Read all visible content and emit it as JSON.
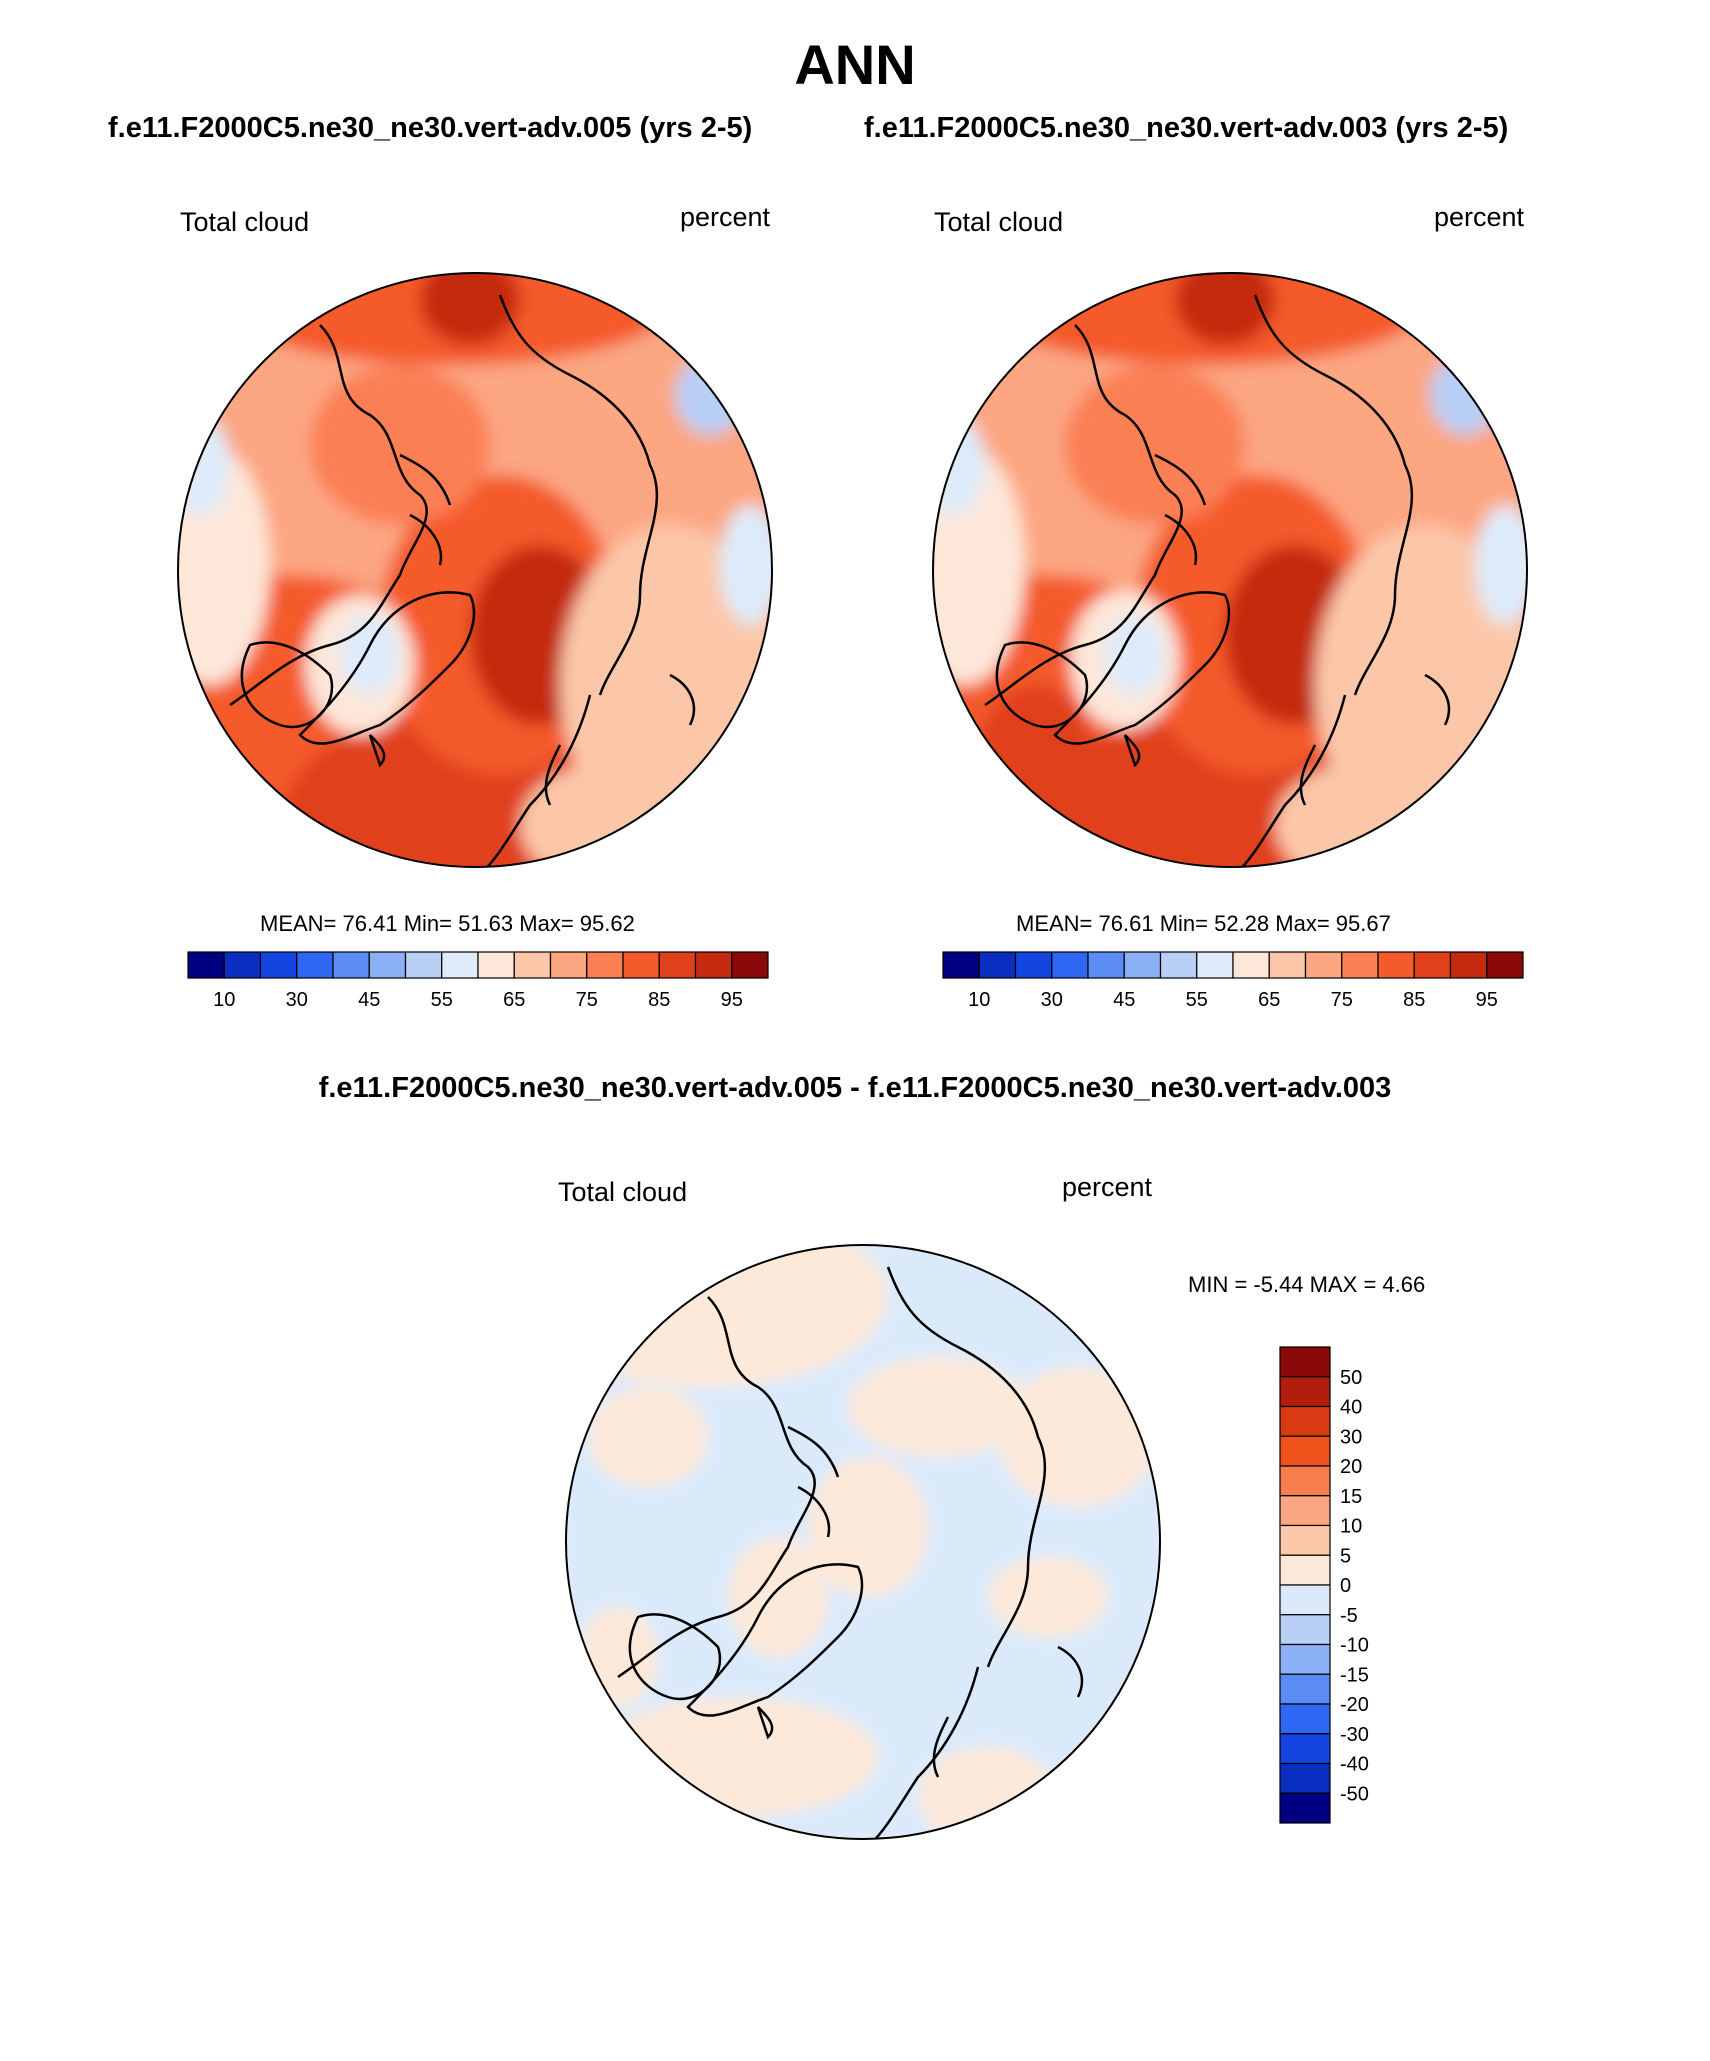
{
  "title": "ANN",
  "panels": [
    {
      "case_title": "f.e11.F2000C5.ne30_ne30.vert-adv.005 (yrs 2-5)",
      "variable": "Total cloud",
      "units": "percent",
      "stats": "MEAN=  76.41  Min=  51.63  Max=  95.62",
      "colorbar_labels": [
        "10",
        "30",
        "45",
        "55",
        "65",
        "75",
        "85",
        "95"
      ]
    },
    {
      "case_title": "f.e11.F2000C5.ne30_ne30.vert-adv.003 (yrs 2-5)",
      "variable": "Total cloud",
      "units": "percent",
      "stats": "MEAN=  76.61  Min=  52.28  Max=  95.67",
      "colorbar_labels": [
        "10",
        "30",
        "45",
        "55",
        "65",
        "75",
        "85",
        "95"
      ]
    }
  ],
  "difference": {
    "title": "f.e11.F2000C5.ne30_ne30.vert-adv.005 - f.e11.F2000C5.ne30_ne30.vert-adv.003",
    "variable": "Total cloud",
    "units": "percent",
    "stats": "MIN =  -5.44 MAX =   4.66",
    "colorbar_labels": [
      "50",
      "40",
      "30",
      "20",
      "15",
      "10",
      "5",
      "0",
      "-5",
      "-10",
      "-15",
      "-20",
      "-30",
      "-40",
      "-50"
    ]
  },
  "colors": {
    "field_scale": [
      "#000080",
      "#0a2ebf",
      "#1445e0",
      "#2f66f2",
      "#5b8cf5",
      "#8cb0f5",
      "#b9cff6",
      "#ddebfa",
      "#fde7d9",
      "#fcc7a9",
      "#fca682",
      "#fb7f55",
      "#f45a2c",
      "#e0401c",
      "#c42a0f",
      "#8a0a0a"
    ],
    "diff_scale": [
      "#8a0a0a",
      "#b31e0c",
      "#d83a14",
      "#f0521c",
      "#f77d4f",
      "#fba682",
      "#fcc8aa",
      "#fde9da",
      "#dbeafb",
      "#b9cff6",
      "#8cb0f5",
      "#5b8cf5",
      "#2f66f2",
      "#1445e0",
      "#0a2ebf",
      "#000080"
    ]
  }
}
